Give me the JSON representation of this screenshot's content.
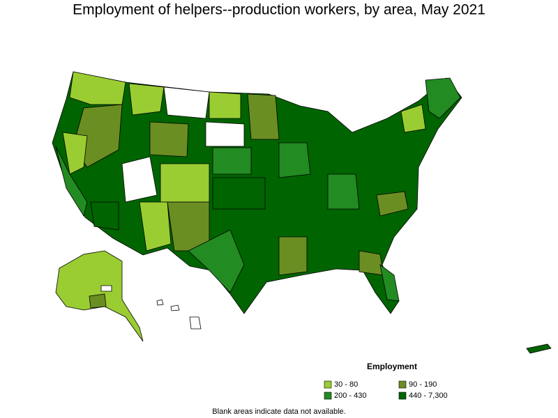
{
  "title": "Employment of helpers--production workers, by area, May 2021",
  "legend": {
    "title": "Employment",
    "items": [
      {
        "label": "30 - 80",
        "color": "#9acd32"
      },
      {
        "label": "90 - 190",
        "color": "#6b8e23"
      },
      {
        "label": "200 - 430",
        "color": "#228b22"
      },
      {
        "label": "440 - 7,300",
        "color": "#006400"
      }
    ]
  },
  "note": "Blank areas indicate data not available."
}
